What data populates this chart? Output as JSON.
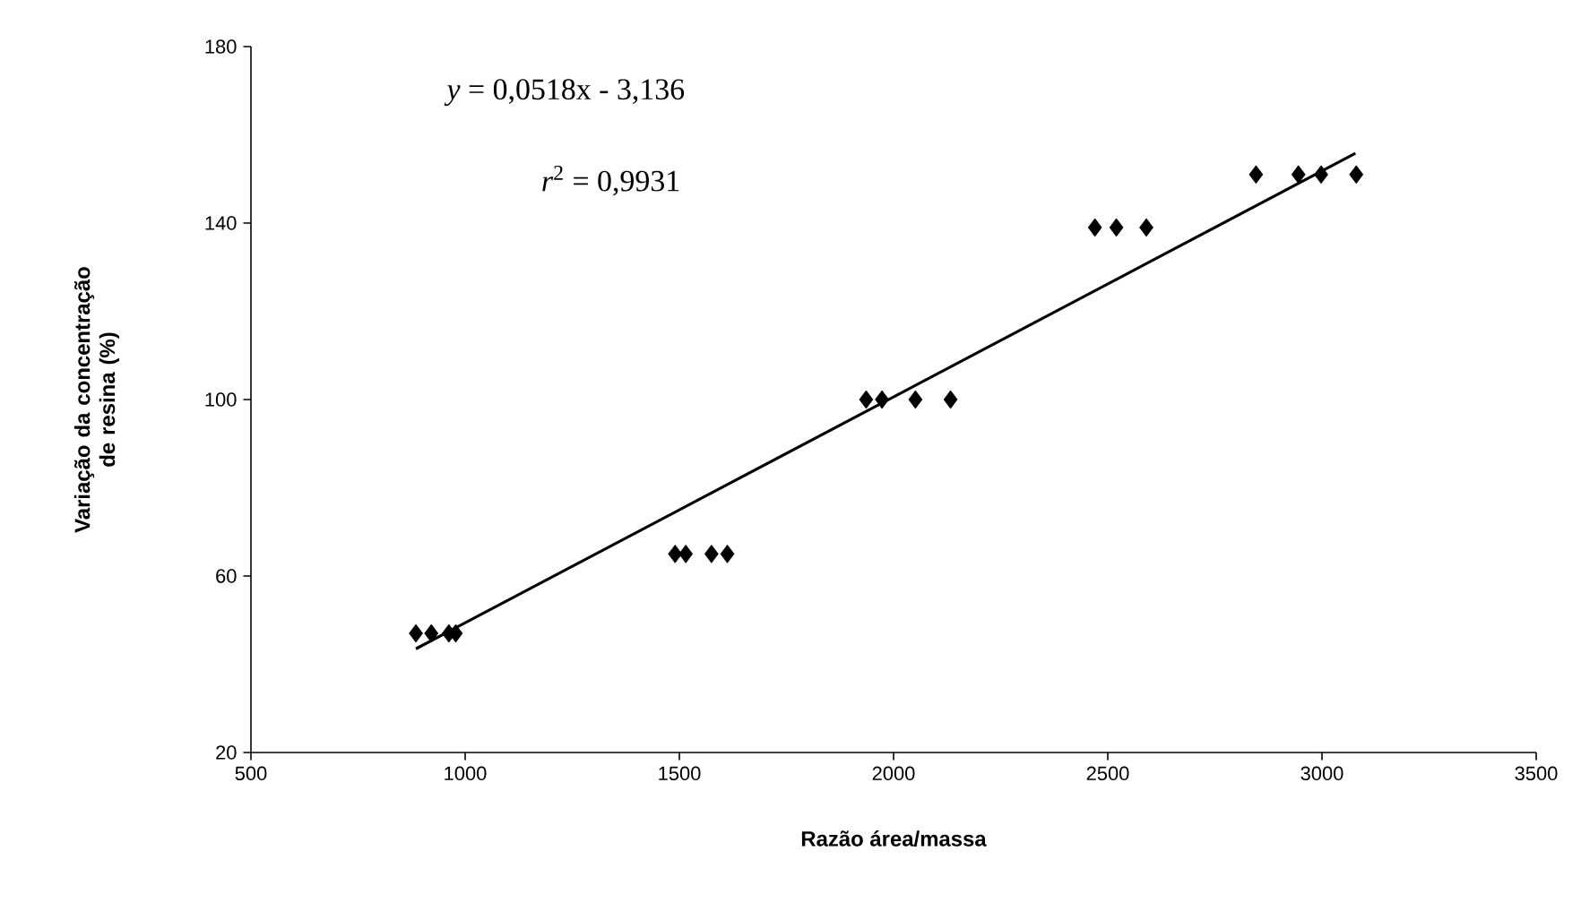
{
  "chart_data": {
    "type": "scatter",
    "xlabel": "Razão área/massa",
    "ylabel": "Variação da concentração de resina (%)",
    "xlim": [
      500,
      3500
    ],
    "xticks": [
      500,
      1000,
      1500,
      2000,
      2500,
      3000,
      3500
    ],
    "ylim": [
      20,
      180
    ],
    "yticks": [
      20,
      60,
      100,
      140,
      180
    ],
    "grid": false,
    "marker": "diamond",
    "annotations": [
      "*y* = 0,0518x - 3,136",
      "*r*$^{2}$ = 0,9931"
    ],
    "series": [
      {
        "color": "#000000",
        "x": [
          885,
          921,
          962,
          978,
          1490,
          1515,
          1575,
          1612,
          1936,
          1973,
          2051,
          2133,
          2470,
          2520,
          2590,
          2846,
          2945,
          2998,
          3080
        ],
        "values": [
          47,
          47,
          47,
          47,
          65,
          65,
          65,
          65,
          100,
          100,
          100,
          100,
          139,
          139,
          139,
          151,
          151,
          151,
          151
        ]
      },
      {
        "type": "line",
        "color": "#000000",
        "marker": "none",
        "line_style": "solid",
        "x": [
          885,
          3078
        ],
        "values": [
          43.5,
          155.8
        ]
      }
    ]
  }
}
